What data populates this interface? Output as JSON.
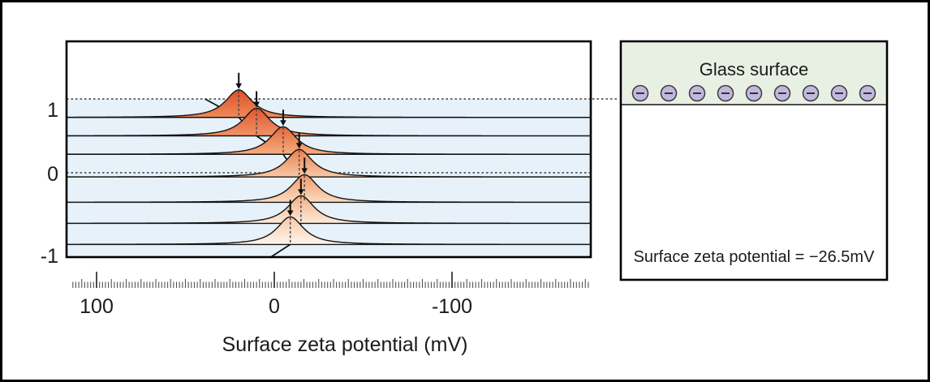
{
  "chart_data": {
    "type": "area",
    "variant": "ridgeline-stack",
    "title": "",
    "xlabel": "Surface zeta potential (mV)",
    "ylabel": "",
    "x_tick_labels": [
      "100",
      "0",
      "-100"
    ],
    "x_ticks_mV": [
      100,
      0,
      -100
    ],
    "x_axis_reversed": true,
    "x_range_left_to_right_mV": [
      116,
      -178
    ],
    "y_tick_labels": [
      "1",
      "0",
      "-1"
    ],
    "y_levels": [
      1,
      0,
      -1
    ],
    "dotted_levels": [
      1,
      0
    ],
    "series": [
      {
        "level": 0.75,
        "peak_mV": 20
      },
      {
        "level": 0.5,
        "peak_mV": 10
      },
      {
        "level": 0.25,
        "peak_mV": -5
      },
      {
        "level": -0.05,
        "peak_mV": -14
      },
      {
        "level": -0.35,
        "peak_mV": -17
      },
      {
        "level": -0.6,
        "peak_mV": -15
      },
      {
        "level": -0.85,
        "peak_mV": -9
      }
    ],
    "trend_line": {
      "top_mV": 39,
      "top_level": 1,
      "bottom_mV": 2,
      "bottom_level": -1
    },
    "grid": false,
    "legend": false
  },
  "panel": {
    "title": "Glass surface",
    "result_text": "Surface zeta potential = −26.5mV",
    "charge_count": 9,
    "charge_sign": "−"
  },
  "colors": {
    "band_blue": "#e6f1fa",
    "panel_green": "#e8f0e3",
    "charge_fill": "#c2b8dd",
    "charge_stroke": "#3b3b3b",
    "dotted": "#3a3a3a",
    "trend": "#101010",
    "curve_stroke": "#141414",
    "arrow": "#0f0f0f",
    "peak_dash": "#4d4d4d",
    "curves": [
      [
        "#dd4f27",
        "#ef8a5a"
      ],
      [
        "#e0572e",
        "#f19267"
      ],
      [
        "#e5683a",
        "#f5ae81"
      ],
      [
        "#ea8050",
        "#f8c9a4"
      ],
      [
        "#ef9765",
        "#fbdcc3"
      ],
      [
        "#f3ae82",
        "#fdebdc"
      ],
      [
        "#f7c8a6",
        "#fef5ec"
      ]
    ]
  }
}
